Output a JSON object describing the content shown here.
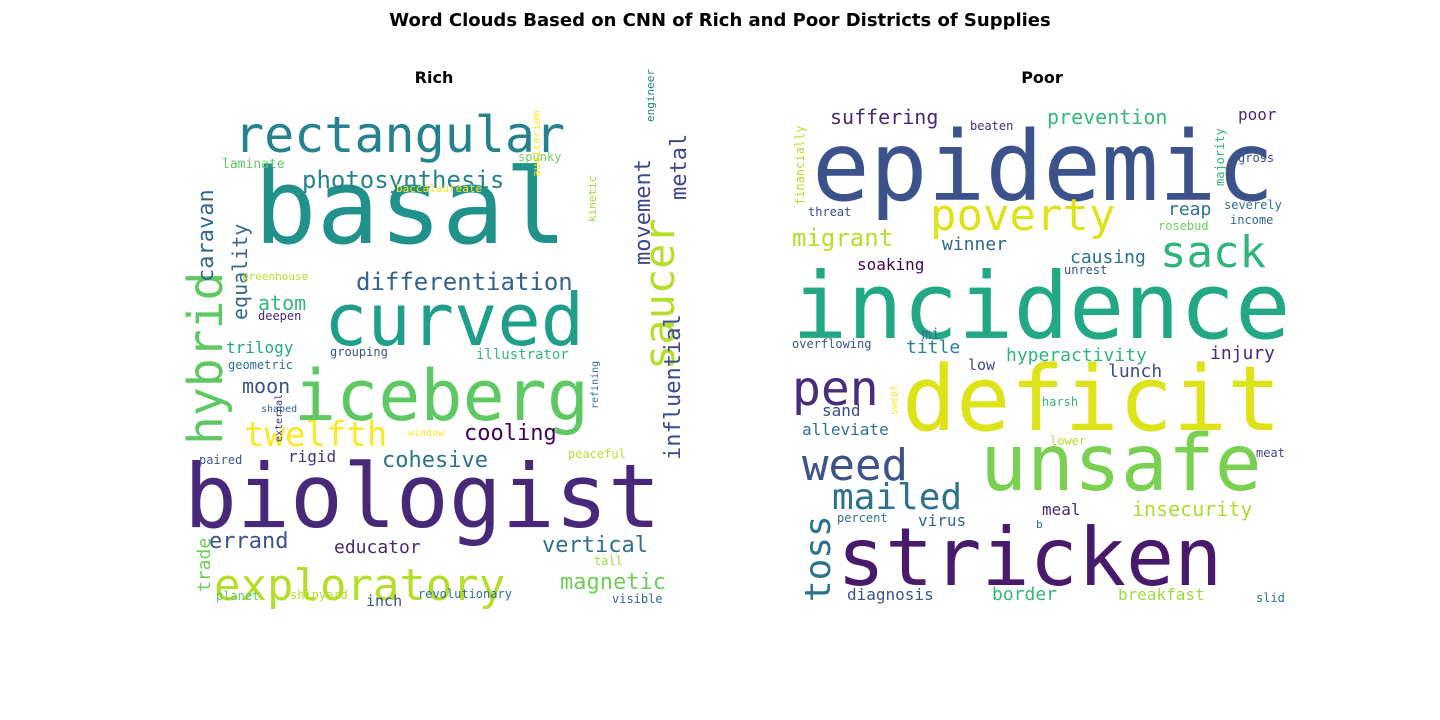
{
  "figure": {
    "title": "Word Clouds Based on CNN of Rich and Poor Districts of Supplies"
  },
  "chart_data": [
    {
      "type": "wordcloud",
      "title": "Rich",
      "words": [
        {
          "text": "basal",
          "color": "#21918c"
        },
        {
          "text": "biologist",
          "color": "#482878"
        },
        {
          "text": "curved",
          "color": "#1f9e89"
        },
        {
          "text": "iceberg",
          "color": "#5ec962"
        },
        {
          "text": "rectangular",
          "color": "#26828e"
        },
        {
          "text": "exploratory",
          "color": "#b5de2b"
        },
        {
          "text": "hybrid",
          "color": "#5ec962"
        },
        {
          "text": "saucer",
          "color": "#b5de2b"
        },
        {
          "text": "twelfth",
          "color": "#fde725"
        },
        {
          "text": "photosynthesis",
          "color": "#26828e"
        },
        {
          "text": "differentiation",
          "color": "#33638d"
        },
        {
          "text": "movement",
          "color": "#3e4989"
        },
        {
          "text": "caravan",
          "color": "#31688e"
        },
        {
          "text": "equality",
          "color": "#31688e"
        },
        {
          "text": "metal",
          "color": "#3e4989"
        },
        {
          "text": "influential",
          "color": "#3e4989"
        },
        {
          "text": "cooling",
          "color": "#440154"
        },
        {
          "text": "cohesive",
          "color": "#2c728e"
        },
        {
          "text": "vertical",
          "color": "#2c728e"
        },
        {
          "text": "errand",
          "color": "#3b528b"
        },
        {
          "text": "magnetic",
          "color": "#6ece58"
        },
        {
          "text": "atom",
          "color": "#35b779"
        },
        {
          "text": "moon",
          "color": "#3b528b"
        },
        {
          "text": "educator",
          "color": "#482878"
        },
        {
          "text": "trade",
          "color": "#6ece58"
        },
        {
          "text": "trilogy",
          "color": "#22a884"
        },
        {
          "text": "rigid",
          "color": "#46327e"
        },
        {
          "text": "illustrator",
          "color": "#35b779"
        },
        {
          "text": "inch",
          "color": "#3b528b"
        },
        {
          "text": "laminate",
          "color": "#5ec962"
        },
        {
          "text": "spunky",
          "color": "#6ece58"
        },
        {
          "text": "engineer",
          "color": "#26828e"
        },
        {
          "text": "kinetic",
          "color": "#9fda3a"
        },
        {
          "text": "baccalaureate",
          "color": "#fde725"
        },
        {
          "text": "auditorium",
          "color": "#fde725"
        },
        {
          "text": "greenhouse",
          "color": "#b5de2b"
        },
        {
          "text": "deepen",
          "color": "#482878"
        },
        {
          "text": "grouping",
          "color": "#3b528b"
        },
        {
          "text": "geometric",
          "color": "#2c728e"
        },
        {
          "text": "refining",
          "color": "#2c728e"
        },
        {
          "text": "shaped",
          "color": "#31688e"
        },
        {
          "text": "window",
          "color": "#fde725"
        },
        {
          "text": "peaceful",
          "color": "#b5de2b"
        },
        {
          "text": "paired",
          "color": "#3b528b"
        },
        {
          "text": "external",
          "color": "#46327e"
        },
        {
          "text": "tall",
          "color": "#9fda3a"
        },
        {
          "text": "planet",
          "color": "#5ec962"
        },
        {
          "text": "shipyard",
          "color": "#b5de2b"
        },
        {
          "text": "revolutionary",
          "color": "#2c728e"
        },
        {
          "text": "visible",
          "color": "#31688e"
        }
      ]
    },
    {
      "type": "wordcloud",
      "title": "Poor",
      "words": [
        {
          "text": "epidemic",
          "color": "#3b528b"
        },
        {
          "text": "incidence",
          "color": "#22a884"
        },
        {
          "text": "deficit",
          "color": "#dde318"
        },
        {
          "text": "unsafe",
          "color": "#7ad151"
        },
        {
          "text": "stricken",
          "color": "#481a6c"
        },
        {
          "text": "poverty",
          "color": "#dde318"
        },
        {
          "text": "sack",
          "color": "#2fb47c"
        },
        {
          "text": "pen",
          "color": "#472d7b"
        },
        {
          "text": "weed",
          "color": "#3b528b"
        },
        {
          "text": "mailed",
          "color": "#2c728e"
        },
        {
          "text": "toss",
          "color": "#2c728e"
        },
        {
          "text": "migrant",
          "color": "#b5de2b"
        },
        {
          "text": "suffering",
          "color": "#482878"
        },
        {
          "text": "prevention",
          "color": "#35b779"
        },
        {
          "text": "winner",
          "color": "#31688e"
        },
        {
          "text": "hyperactivity",
          "color": "#2fb47c"
        },
        {
          "text": "insecurity",
          "color": "#addc30"
        },
        {
          "text": "injury",
          "color": "#482878"
        },
        {
          "text": "lunch",
          "color": "#3e4989"
        },
        {
          "text": "title",
          "color": "#26828e"
        },
        {
          "text": "causing",
          "color": "#2c728e"
        },
        {
          "text": "reap",
          "color": "#2c728e"
        },
        {
          "text": "soaking",
          "color": "#440154"
        },
        {
          "text": "poor",
          "color": "#482878"
        },
        {
          "text": "border",
          "color": "#35b779"
        },
        {
          "text": "breakfast",
          "color": "#9fda3a"
        },
        {
          "text": "diagnosis",
          "color": "#3b528b"
        },
        {
          "text": "alleviate",
          "color": "#2c728e"
        },
        {
          "text": "sand",
          "color": "#3e4989"
        },
        {
          "text": "meal",
          "color": "#482878"
        },
        {
          "text": "virus",
          "color": "#31688e"
        },
        {
          "text": "low",
          "color": "#3e4989"
        },
        {
          "text": "mi",
          "color": "#2c728e"
        },
        {
          "text": "overflowing",
          "color": "#3b528b"
        },
        {
          "text": "beaten",
          "color": "#472d7b"
        },
        {
          "text": "majority",
          "color": "#35b779"
        },
        {
          "text": "financially",
          "color": "#b5de2b"
        },
        {
          "text": "threat",
          "color": "#3e4989"
        },
        {
          "text": "gross",
          "color": "#3e4989"
        },
        {
          "text": "severely",
          "color": "#2c728e"
        },
        {
          "text": "income",
          "color": "#31688e"
        },
        {
          "text": "rosebud",
          "color": "#6ece58"
        },
        {
          "text": "unrest",
          "color": "#3b528b"
        },
        {
          "text": "swept",
          "color": "#fde725"
        },
        {
          "text": "harsh",
          "color": "#35b779"
        },
        {
          "text": "lower",
          "color": "#b5de2b"
        },
        {
          "text": "meat",
          "color": "#3e4989"
        },
        {
          "text": "percent",
          "color": "#2c728e"
        },
        {
          "text": "b",
          "color": "#31688e"
        },
        {
          "text": "slid",
          "color": "#2c728e"
        }
      ]
    }
  ]
}
